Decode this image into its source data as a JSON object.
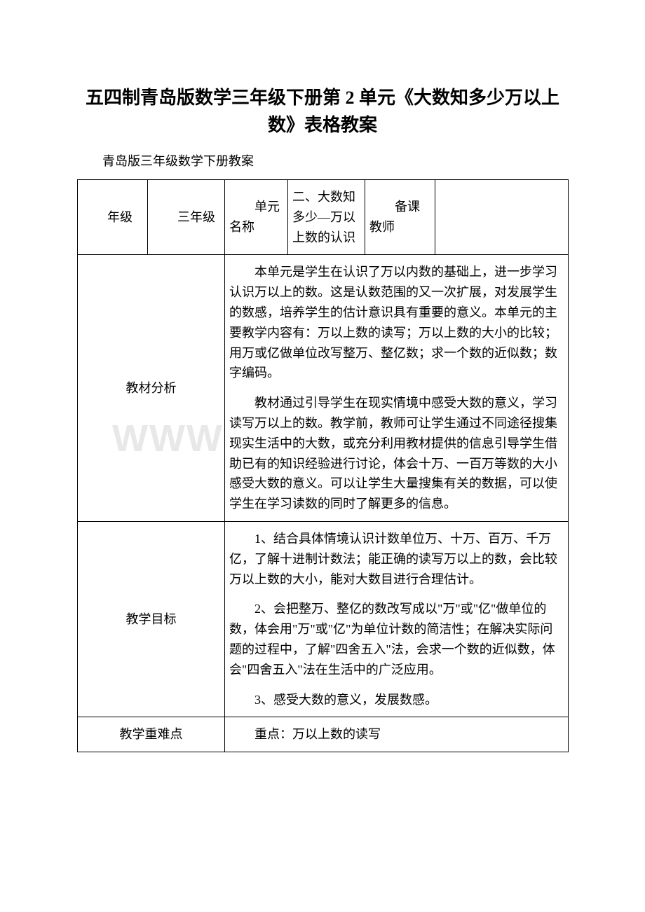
{
  "title": "五四制青岛版数学三年级下册第 2 单元《大数知多少万以上数》表格教案",
  "subtitle": "青岛版三年级数学下册教案",
  "watermark": "WWW",
  "header": {
    "gradeLabel": "年级",
    "gradeValue": "三年级",
    "unitLabel": "单元名称",
    "unitValue": "二、大数知多少—万以上数的认识",
    "prepLabel": "备课教师",
    "prepValue": ""
  },
  "rows": {
    "analysis": {
      "label": "教材分析",
      "p1": "本单元是学生在认识了万以内数的基础上，进一步学习认识万以上的数。这是认数范围的又一次扩展，对发展学生的数感，培养学生的估计意识具有重要的意义。本单元的主要教学内容有：万以上数的读写；万以上数的大小的比较；用万或亿做单位改写整万、整亿数；求一个数的近似数；数字编码。",
      "p2": "教材通过引导学生在现实情境中感受大数的意义，学习读写万以上的数。教学前，教师可让学生通过不同途径搜集现实生活中的大数，或充分利用教材提供的信息引导学生借助已有的知识经验进行讨论，体会十万、一百万等数的大小感受大数的意义。可以让学生大量搜集有关的数据，可以使学生在学习读数的同时了解更多的信息。"
    },
    "objectives": {
      "label": "教学目标",
      "p1": "1、结合具体情境认识计数单位万、十万、百万、千万亿，了解十进制计数法；能正确的读写万以上的数，会比较万以上数的大小，能对大数目进行合理估计。",
      "p2": "2、会把整万、整亿的数改写成以\"万\"或\"亿\"做单位的数，体会用\"万\"或\"亿\"为单位计数的简洁性；在解决实际问题的过程中，了解\"四舍五入\"法，会求一个数的近似数，体会\"四舍五入\"法在生活中的广泛应用。",
      "p3": "3、感受大数的意义，发展数感。"
    },
    "difficulty": {
      "label": "教学重难点",
      "content": "重点：万以上数的读写"
    }
  },
  "style": {
    "page_bg": "#ffffff",
    "text_color": "#000000",
    "border_color": "#000000",
    "watermark_color": "#e8e8e8",
    "title_fontsize": 26,
    "body_fontsize": 18,
    "font_family": "SimSun"
  }
}
